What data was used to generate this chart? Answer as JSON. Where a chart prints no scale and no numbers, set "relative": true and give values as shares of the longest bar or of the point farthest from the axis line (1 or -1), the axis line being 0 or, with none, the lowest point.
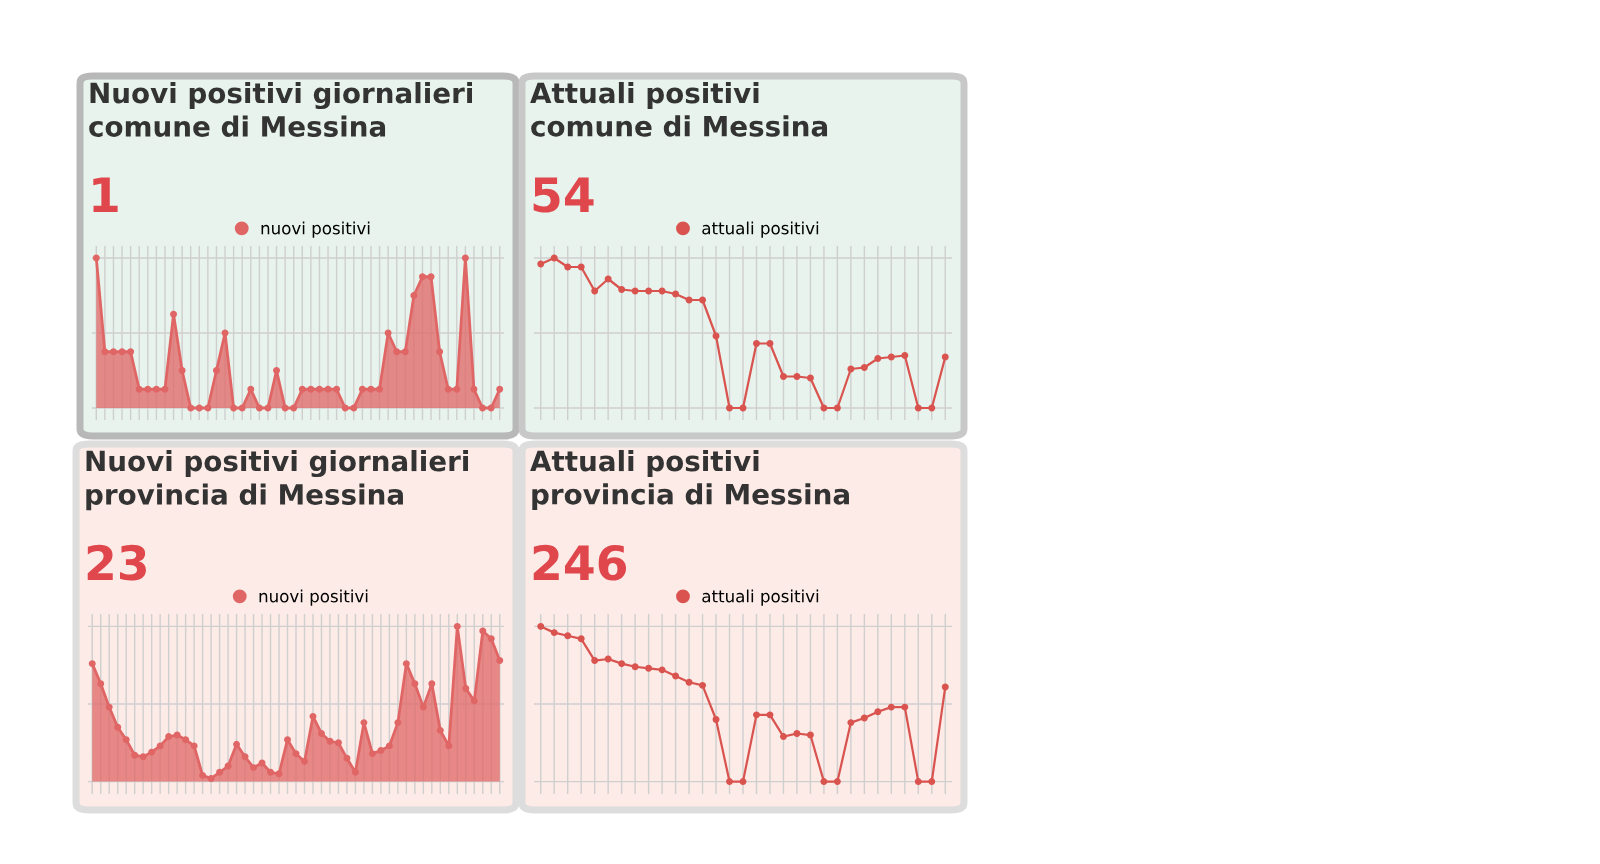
{
  "chart_data": [
    {
      "type": "area",
      "title": "Nuovi positivi giornalieri\ncomune di Messina",
      "subtitle": "1",
      "relative": true,
      "grid": true,
      "legend": "top",
      "marker": "circle",
      "categories": [
        null,
        null,
        null,
        null,
        null,
        null,
        null,
        null,
        null,
        null,
        null,
        null,
        null,
        null,
        null,
        null,
        null,
        null,
        null,
        null,
        null,
        null,
        null,
        null,
        null,
        null,
        null,
        null,
        null,
        null,
        null,
        null,
        null,
        null,
        null,
        null,
        null,
        null,
        null,
        null,
        null,
        null,
        null,
        null,
        null,
        null,
        null,
        null
      ],
      "series": [
        {
          "name": "nuovi positivi",
          "color": "#e06666",
          "values": [
            1,
            0.375,
            0.375,
            0.375,
            0.375,
            0.125,
            0.125,
            0.125,
            0.125,
            0.625,
            0.25,
            0,
            0,
            0,
            0.25,
            0.5,
            0,
            0,
            0.125,
            0,
            0,
            0.25,
            0,
            0,
            0.125,
            0.125,
            0.125,
            0.125,
            0.125,
            0,
            0,
            0.125,
            0.125,
            0.125,
            0.5,
            0.375,
            0.375,
            0.75,
            0.875,
            0.875,
            0.375,
            0.125,
            0.125,
            1,
            0.125,
            0,
            0,
            0.125
          ]
        }
      ]
    },
    {
      "type": "line",
      "title": "Attuali positivi\ncomune di Messina",
      "subtitle": "54",
      "relative": true,
      "grid": true,
      "legend": "top",
      "marker": "circle",
      "categories": [
        null,
        null,
        null,
        null,
        null,
        null,
        null,
        null,
        null,
        null,
        null,
        null,
        null,
        null,
        null,
        null,
        null,
        null,
        null,
        null,
        null,
        null,
        null,
        null,
        null,
        null,
        null,
        null,
        null,
        null,
        null
      ],
      "series": [
        {
          "name": "attuali positivi",
          "color": "#d9534f",
          "values": [
            0.96,
            1,
            0.94,
            0.94,
            0.78,
            0.86,
            0.79,
            0.78,
            0.78,
            0.78,
            0.76,
            0.72,
            0.72,
            0.48,
            0,
            0,
            0.43,
            0.43,
            0.21,
            0.21,
            0.2,
            0,
            0,
            0.26,
            0.27,
            0.33,
            0.34,
            0.35,
            0,
            0,
            0.34
          ]
        }
      ]
    },
    {
      "type": "area",
      "title": "Nuovi positivi giornalieri\nprovincia di Messina",
      "subtitle": "23",
      "relative": true,
      "grid": true,
      "legend": "top",
      "marker": "circle",
      "categories": [
        null,
        null,
        null,
        null,
        null,
        null,
        null,
        null,
        null,
        null,
        null,
        null,
        null,
        null,
        null,
        null,
        null,
        null,
        null,
        null,
        null,
        null,
        null,
        null,
        null,
        null,
        null,
        null,
        null,
        null,
        null,
        null,
        null,
        null,
        null,
        null,
        null,
        null,
        null,
        null,
        null,
        null,
        null,
        null,
        null,
        null,
        null,
        null,
        null
      ],
      "series": [
        {
          "name": "nuovi positivi",
          "color": "#e06666",
          "values": [
            0.76,
            0.63,
            0.48,
            0.35,
            0.27,
            0.17,
            0.16,
            0.19,
            0.23,
            0.29,
            0.3,
            0.27,
            0.23,
            0.04,
            0.02,
            0.06,
            0.1,
            0.24,
            0.16,
            0.09,
            0.12,
            0.06,
            0.05,
            0.27,
            0.18,
            0.13,
            0.42,
            0.31,
            0.26,
            0.25,
            0.15,
            0.06,
            0.38,
            0.18,
            0.2,
            0.23,
            0.38,
            0.76,
            0.63,
            0.48,
            0.63,
            0.33,
            0.23,
            1,
            0.6,
            0.52,
            0.97,
            0.92,
            0.78
          ]
        }
      ]
    },
    {
      "type": "line",
      "title": "Attuali positivi\nprovincia di Messina",
      "subtitle": "246",
      "relative": true,
      "grid": true,
      "legend": "top",
      "marker": "circle",
      "categories": [
        null,
        null,
        null,
        null,
        null,
        null,
        null,
        null,
        null,
        null,
        null,
        null,
        null,
        null,
        null,
        null,
        null,
        null,
        null,
        null,
        null,
        null,
        null,
        null,
        null,
        null,
        null,
        null,
        null,
        null,
        null
      ],
      "series": [
        {
          "name": "attuali positivi",
          "color": "#d9534f",
          "values": [
            1,
            0.96,
            0.94,
            0.92,
            0.78,
            0.79,
            0.76,
            0.74,
            0.73,
            0.72,
            0.68,
            0.64,
            0.62,
            0.4,
            0,
            0,
            0.43,
            0.43,
            0.29,
            0.31,
            0.3,
            0,
            0,
            0.38,
            0.41,
            0.45,
            0.48,
            0.48,
            0,
            0,
            0.61
          ]
        }
      ]
    }
  ]
}
